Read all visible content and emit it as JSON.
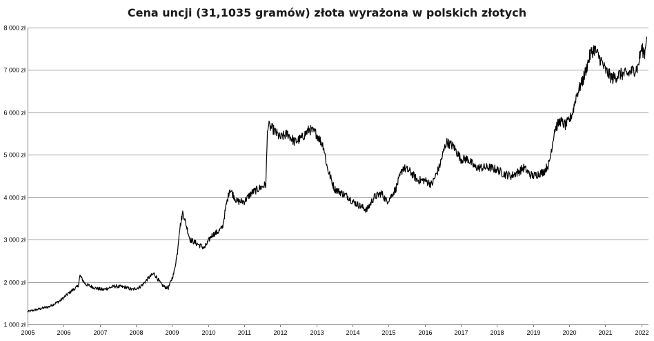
{
  "chart_data": {
    "type": "line",
    "title": "Cena uncji (31,1035 gramów) złota wyrażona w polskich złotych",
    "xlabel": "",
    "ylabel": "",
    "xlim": [
      2005,
      2022.2
    ],
    "ylim": [
      1000,
      8000
    ],
    "y_ticks": [
      1000,
      2000,
      3000,
      4000,
      5000,
      6000,
      7000,
      8000
    ],
    "y_tick_labels": [
      "1 000 zł",
      "2 000 zł",
      "3 000 zł",
      "4 000 zł",
      "5 000 zł",
      "6 000 zł",
      "7 000 zł",
      "8 000 zł"
    ],
    "x_ticks": [
      2005,
      2006,
      2007,
      2008,
      2009,
      2010,
      2011,
      2012,
      2013,
      2014,
      2015,
      2016,
      2017,
      2018,
      2019,
      2020,
      2021,
      2022
    ],
    "x_tick_labels": [
      "2005",
      "2006",
      "2007",
      "2008",
      "2009",
      "2010",
      "2011",
      "2012",
      "2013",
      "2014",
      "2015",
      "2016",
      "2017",
      "2018",
      "2019",
      "2020",
      "2021",
      "2022"
    ],
    "grid": "horizontal",
    "legend": "none",
    "series_color": "#000000",
    "series": [
      {
        "x": [
          2005.0,
          2005.3,
          2005.6,
          2005.9,
          2006.2,
          2006.4,
          2006.45,
          2006.6,
          2006.9,
          2007.1,
          2007.4,
          2007.7,
          2007.9,
          2008.1,
          2008.2,
          2008.35,
          2008.5,
          2008.7,
          2008.8,
          2008.9,
          2009.05,
          2009.15,
          2009.2,
          2009.3,
          2009.5,
          2009.7,
          2009.9,
          2010.1,
          2010.3,
          2010.4,
          2010.5,
          2010.6,
          2010.8,
          2011.0,
          2011.2,
          2011.4,
          2011.6,
          2011.65,
          2011.8,
          2012.0,
          2012.2,
          2012.4,
          2012.6,
          2012.8,
          2013.0,
          2013.2,
          2013.3,
          2013.5,
          2013.7,
          2013.9,
          2014.0,
          2014.2,
          2014.4,
          2014.6,
          2014.8,
          2014.95,
          2015.05,
          2015.2,
          2015.4,
          2015.6,
          2015.8,
          2016.0,
          2016.2,
          2016.4,
          2016.5,
          2016.6,
          2016.8,
          2017.0,
          2017.2,
          2017.4,
          2017.6,
          2017.8,
          2018.0,
          2018.2,
          2018.4,
          2018.6,
          2018.75,
          2018.9,
          2019.0,
          2019.3,
          2019.45,
          2019.6,
          2019.75,
          2019.9,
          2020.0,
          2020.1,
          2020.2,
          2020.4,
          2020.6,
          2020.7,
          2020.9,
          2021.0,
          2021.2,
          2021.4,
          2021.6,
          2021.8,
          2021.9,
          2022.0,
          2022.1,
          2022.15
        ],
        "y": [
          1300,
          1360,
          1420,
          1560,
          1780,
          1900,
          2150,
          1950,
          1850,
          1820,
          1900,
          1880,
          1820,
          1880,
          1950,
          2100,
          2200,
          1950,
          1880,
          1860,
          2200,
          2700,
          3200,
          3650,
          3000,
          2900,
          2800,
          3100,
          3200,
          3300,
          3800,
          4200,
          3900,
          3900,
          4100,
          4200,
          4300,
          5700,
          5600,
          5400,
          5500,
          5300,
          5400,
          5600,
          5500,
          5200,
          4700,
          4200,
          4100,
          4000,
          3900,
          3800,
          3700,
          4000,
          4100,
          3900,
          4000,
          4200,
          4700,
          4600,
          4400,
          4400,
          4300,
          4700,
          5000,
          5300,
          5200,
          4900,
          4900,
          4700,
          4700,
          4700,
          4650,
          4550,
          4500,
          4600,
          4700,
          4550,
          4500,
          4600,
          4800,
          5600,
          5800,
          5700,
          5800,
          6000,
          6400,
          6800,
          7400,
          7500,
          7200,
          7000,
          6800,
          6900,
          6900,
          7000,
          7050,
          7500,
          7400,
          7900
        ]
      }
    ]
  }
}
